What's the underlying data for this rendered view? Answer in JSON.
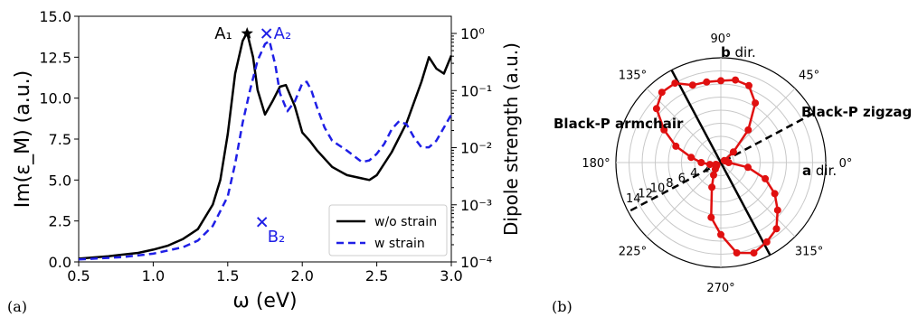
{
  "chart_data": [
    {
      "type": "line",
      "panel_label": "(a)",
      "xlabel": "ω (eV)",
      "ylabel": "Im(ε_M) (a.u.)",
      "ylabel_right": "Dipole strength (a.u.)",
      "xlim": [
        0.5,
        3.0
      ],
      "ylim": [
        0,
        15
      ],
      "ylim_right": [
        0.0001,
        2
      ],
      "right_axis_scale": "log",
      "x_ticks": [
        "0.5",
        "1.0",
        "1.5",
        "2.0",
        "2.5",
        "3.0"
      ],
      "y_ticks": [
        "0.0",
        "2.5",
        "5.0",
        "7.5",
        "10.0",
        "12.5",
        "15.0"
      ],
      "y_ticks_right": [
        "10⁰",
        "10⁻¹",
        "10⁻²",
        "10⁻³",
        "10⁻⁴"
      ],
      "legend_position": "lower-right",
      "series": [
        {
          "name": "w/o strain",
          "color": "#000000",
          "style": "solid",
          "x": [
            0.5,
            0.7,
            0.9,
            1.0,
            1.1,
            1.2,
            1.3,
            1.4,
            1.45,
            1.5,
            1.55,
            1.6,
            1.63,
            1.67,
            1.7,
            1.75,
            1.8,
            1.85,
            1.89,
            1.95,
            2.0,
            2.05,
            2.1,
            2.2,
            2.3,
            2.4,
            2.45,
            2.5,
            2.6,
            2.7,
            2.8,
            2.85,
            2.9,
            2.95,
            3.0
          ],
          "values": [
            0.2,
            0.35,
            0.55,
            0.75,
            1.0,
            1.4,
            2.0,
            3.5,
            5.0,
            7.8,
            11.5,
            13.5,
            14.0,
            12.5,
            10.5,
            9.0,
            9.8,
            10.7,
            10.8,
            9.5,
            7.9,
            7.4,
            6.8,
            5.8,
            5.3,
            5.1,
            5.0,
            5.3,
            6.7,
            8.5,
            11.0,
            12.5,
            11.8,
            11.5,
            12.6
          ]
        },
        {
          "name": "w strain",
          "color": "#1f1fe6",
          "style": "dashed",
          "x": [
            0.5,
            0.8,
            1.0,
            1.2,
            1.3,
            1.4,
            1.5,
            1.55,
            1.6,
            1.65,
            1.7,
            1.75,
            1.78,
            1.82,
            1.85,
            1.9,
            1.95,
            2.0,
            2.03,
            2.06,
            2.1,
            2.15,
            2.2,
            2.3,
            2.4,
            2.45,
            2.5,
            2.55,
            2.6,
            2.65,
            2.7,
            2.75,
            2.8,
            2.85,
            2.9,
            2.95,
            3.0
          ],
          "values": [
            0.15,
            0.3,
            0.5,
            0.9,
            1.3,
            2.2,
            4.0,
            6.0,
            8.5,
            10.5,
            12.3,
            13.3,
            13.5,
            12.0,
            10.3,
            9.2,
            9.8,
            10.9,
            11.0,
            10.5,
            9.4,
            8.2,
            7.4,
            6.8,
            6.1,
            6.2,
            6.6,
            7.2,
            8.1,
            8.6,
            8.4,
            7.6,
            7.0,
            7.0,
            7.4,
            8.2,
            9.0
          ]
        }
      ],
      "markers": [
        {
          "label": "A₁",
          "symbol": "star",
          "x": 1.63,
          "y_dipole": 1.0,
          "color": "#000000"
        },
        {
          "label": "A₂",
          "symbol": "cross",
          "x": 1.76,
          "y_dipole": 1.0,
          "color": "#1f1fe6"
        },
        {
          "label": "B₂",
          "symbol": "cross",
          "x": 1.73,
          "y_dipole": 0.0005,
          "color": "#1f1fe6"
        }
      ]
    },
    {
      "type": "polar",
      "panel_label": "(b)",
      "angle_labels": [
        "0°",
        "45°",
        "90°",
        "135°",
        "180°",
        "225°",
        "270°",
        "315°"
      ],
      "radial_ticks": [
        "2",
        "4",
        "6",
        "8",
        "10",
        "12",
        "14"
      ],
      "rmax": 16,
      "series": [
        {
          "name": "",
          "color": "#e01010",
          "style": "solid-with-dots",
          "angles_deg": [
            0,
            10,
            20,
            30,
            40,
            50,
            60,
            70,
            80,
            90,
            100,
            110,
            120,
            130,
            140,
            150,
            160,
            170,
            180,
            190,
            200,
            210,
            220,
            230,
            240,
            250,
            260,
            270,
            280,
            290,
            300,
            310,
            320,
            330,
            340,
            350
          ],
          "r": [
            1.2,
            1.0,
            0.7,
            0.6,
            2.5,
            6.5,
            10.5,
            12.5,
            12.8,
            12.5,
            12.5,
            12.6,
            14.0,
            14.0,
            12.8,
            10.0,
            7.3,
            4.6,
            3.0,
            1.7,
            0.8,
            0.7,
            0.9,
            1.3,
            2.2,
            4.0,
            8.5,
            11.0,
            14.0,
            14.7,
            14.0,
            13.2,
            11.3,
            9.5,
            7.2,
            4.2
          ]
        }
      ],
      "annotations": [
        {
          "text": "Black-P armchair",
          "angle_deg": 118,
          "style": "solid"
        },
        {
          "text": "Black-P zigzag",
          "angle_deg": 28,
          "style": "dashed"
        },
        {
          "text": "b dir.",
          "bold_part": "b"
        },
        {
          "text": "a dir.",
          "bold_part": "a"
        }
      ]
    }
  ]
}
